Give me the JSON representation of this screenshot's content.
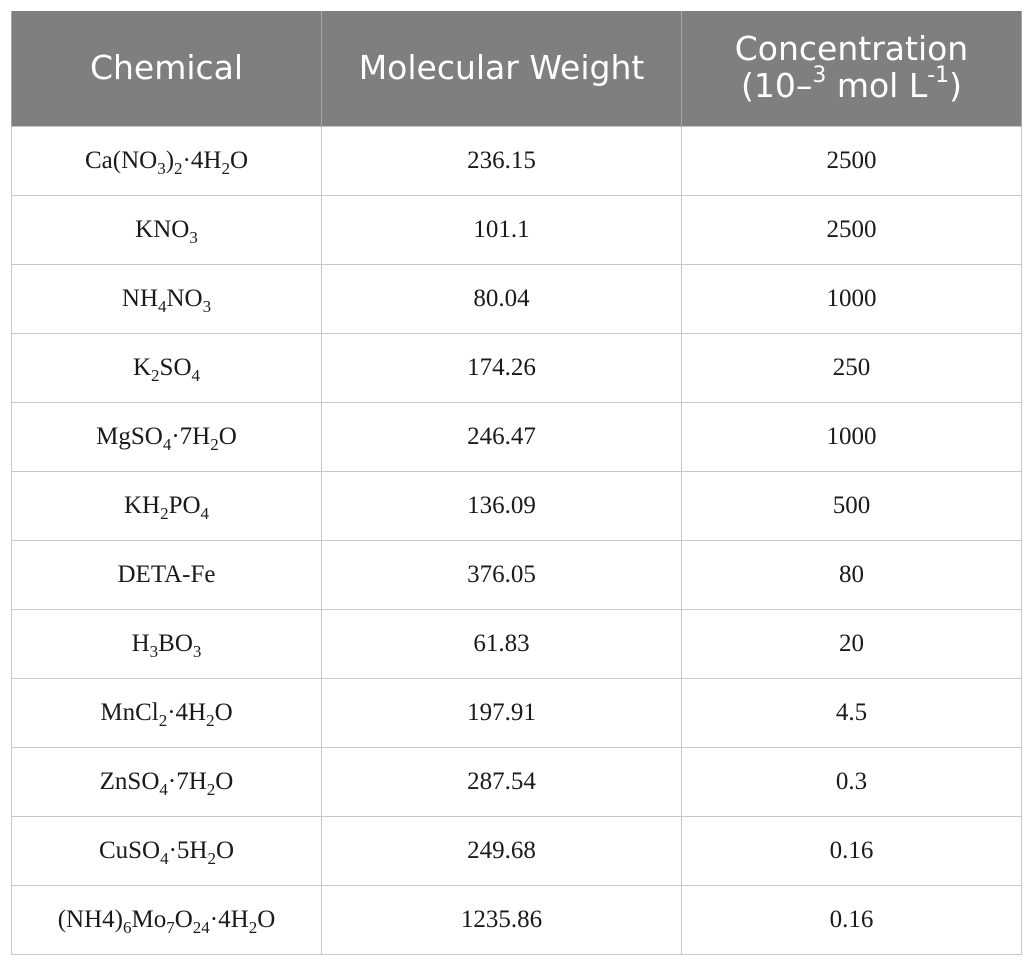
{
  "table": {
    "headers": {
      "chemical": "Chemical",
      "molecular_weight": "Molecular Weight",
      "concentration_line1": "Concentration",
      "concentration_line2_prefix": "(10–",
      "concentration_line2_exp": "3",
      "concentration_line2_mid": " mol L",
      "concentration_line2_exp2": "-1",
      "concentration_line2_suffix": ")"
    },
    "rows": [
      {
        "chemical": [
          [
            "Ca(NO",
            ""
          ],
          [
            "3",
            "sub"
          ],
          [
            ")",
            ""
          ],
          [
            "2",
            "sub"
          ],
          [
            "·4H",
            ""
          ],
          [
            "2",
            "sub"
          ],
          [
            "O",
            ""
          ]
        ],
        "mw": "236.15",
        "conc": "2500"
      },
      {
        "chemical": [
          [
            "KNO",
            ""
          ],
          [
            "3",
            "sub"
          ]
        ],
        "mw": "101.1",
        "conc": "2500"
      },
      {
        "chemical": [
          [
            "NH",
            ""
          ],
          [
            "4",
            "sub"
          ],
          [
            "NO",
            ""
          ],
          [
            "3",
            "sub"
          ]
        ],
        "mw": "80.04",
        "conc": "1000"
      },
      {
        "chemical": [
          [
            "K",
            ""
          ],
          [
            "2",
            "sub"
          ],
          [
            "SO",
            ""
          ],
          [
            "4",
            "sub"
          ]
        ],
        "mw": "174.26",
        "conc": "250"
      },
      {
        "chemical": [
          [
            "MgSO",
            ""
          ],
          [
            "4",
            "sub"
          ],
          [
            "·7H",
            ""
          ],
          [
            "2",
            "sub"
          ],
          [
            "O",
            ""
          ]
        ],
        "mw": "246.47",
        "conc": "1000"
      },
      {
        "chemical": [
          [
            "KH",
            ""
          ],
          [
            "2",
            "sub"
          ],
          [
            "PO",
            ""
          ],
          [
            "4",
            "sub"
          ]
        ],
        "mw": "136.09",
        "conc": "500"
      },
      {
        "chemical": [
          [
            "DETA-Fe",
            ""
          ]
        ],
        "mw": "376.05",
        "conc": "80"
      },
      {
        "chemical": [
          [
            "H",
            ""
          ],
          [
            "3",
            "sub"
          ],
          [
            "BO",
            ""
          ],
          [
            "3",
            "sub"
          ]
        ],
        "mw": "61.83",
        "conc": "20"
      },
      {
        "chemical": [
          [
            "MnCl",
            ""
          ],
          [
            "2",
            "sub"
          ],
          [
            "·4H",
            ""
          ],
          [
            "2",
            "sub"
          ],
          [
            "O",
            ""
          ]
        ],
        "mw": "197.91",
        "conc": "4.5"
      },
      {
        "chemical": [
          [
            "ZnSO",
            ""
          ],
          [
            "4",
            "sub"
          ],
          [
            "·7H",
            ""
          ],
          [
            "2",
            "sub"
          ],
          [
            "O",
            ""
          ]
        ],
        "mw": "287.54",
        "conc": "0.3"
      },
      {
        "chemical": [
          [
            "CuSO",
            ""
          ],
          [
            "4",
            "sub"
          ],
          [
            "·5H",
            ""
          ],
          [
            "2",
            "sub"
          ],
          [
            "O",
            ""
          ]
        ],
        "mw": "249.68",
        "conc": "0.16"
      },
      {
        "chemical": [
          [
            "(NH4)",
            ""
          ],
          [
            "6",
            "sub"
          ],
          [
            "Mo",
            ""
          ],
          [
            "7",
            "sub"
          ],
          [
            "O",
            ""
          ],
          [
            "24",
            "sub"
          ],
          [
            "·4H",
            ""
          ],
          [
            "2",
            "sub"
          ],
          [
            "O",
            ""
          ]
        ],
        "mw": "1235.86",
        "conc": "0.16"
      }
    ]
  }
}
